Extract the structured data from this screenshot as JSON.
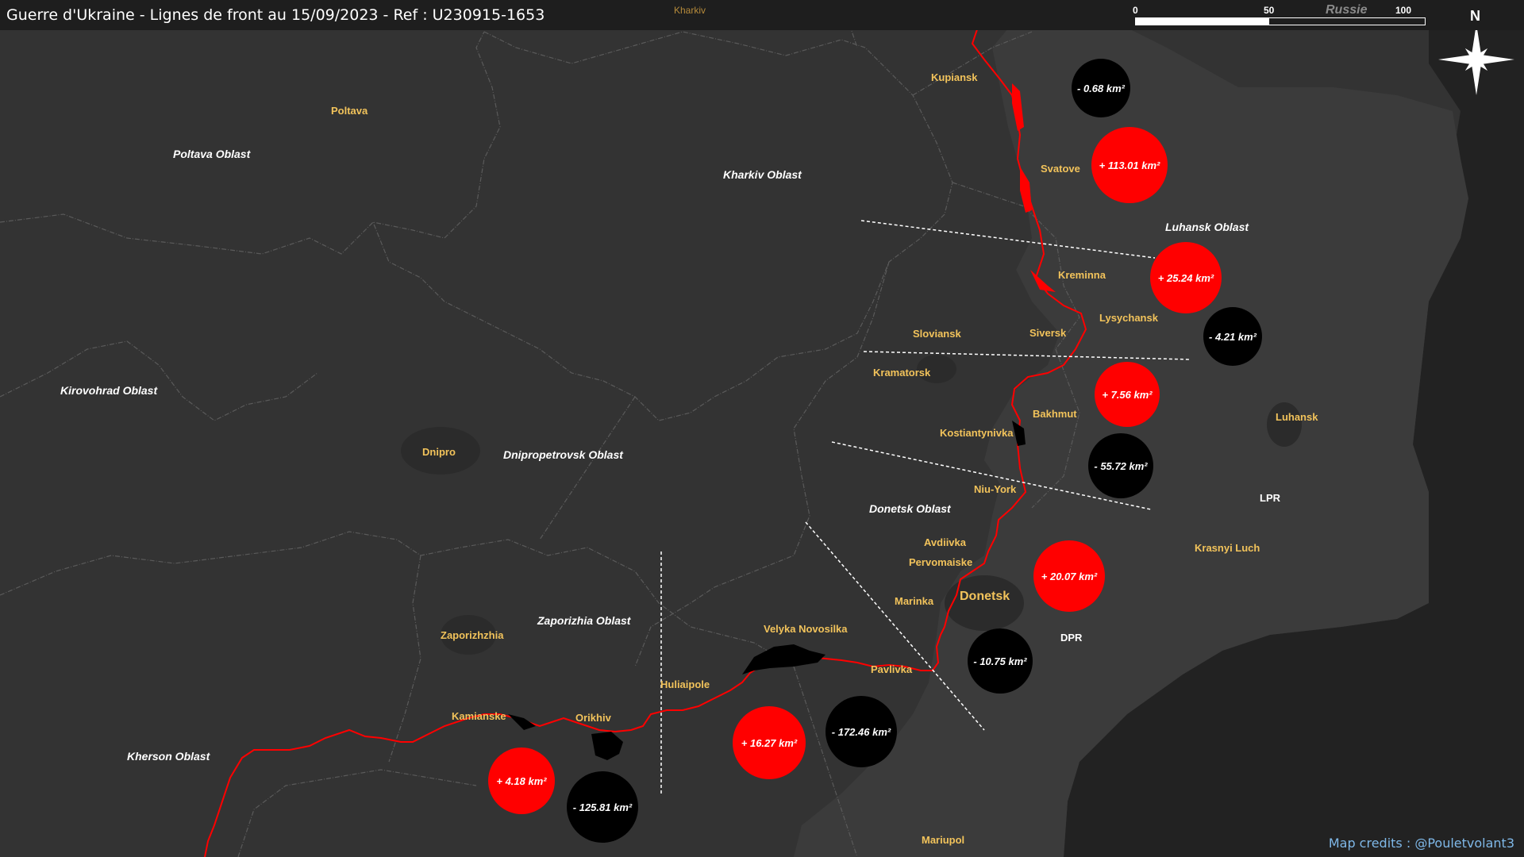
{
  "title": "Guerre d'Ukraine - Lignes de front au 15/09/2023 - Ref : U230915-1653",
  "credits": "Map credits : @Pouletvolant3",
  "scale": {
    "t0": "0",
    "t1": "50",
    "t2": "100 km"
  },
  "russia_label": "Russie",
  "north_label": "N",
  "colors": {
    "front": "#ff0000",
    "gain": "#ff0000",
    "loss": "#000000",
    "ukraine": "#333333",
    "occupied": "#3b3b3b",
    "russia": "#222222"
  },
  "oblasts": [
    {
      "id": "poltava",
      "label": "Poltava Oblast"
    },
    {
      "id": "kharkiv",
      "label": "Kharkiv Oblast"
    },
    {
      "id": "luhansk",
      "label": "Luhansk Oblast"
    },
    {
      "id": "kirovohrad",
      "label": "Kirovohrad Oblast"
    },
    {
      "id": "dnipropetrovsk",
      "label": "Dnipropetrovsk Oblast"
    },
    {
      "id": "donetsk",
      "label": "Donetsk Oblast"
    },
    {
      "id": "zaporizhia",
      "label": "Zaporizhia Oblast"
    },
    {
      "id": "kherson",
      "label": "Kherson Oblast"
    }
  ],
  "regions": [
    {
      "id": "lpr",
      "label": "LPR"
    },
    {
      "id": "dpr",
      "label": "DPR"
    }
  ],
  "cities": [
    {
      "id": "kharkiv",
      "label": "Kharkiv"
    },
    {
      "id": "poltava",
      "label": "Poltava"
    },
    {
      "id": "kupiansk",
      "label": "Kupiansk"
    },
    {
      "id": "svatove",
      "label": "Svatove"
    },
    {
      "id": "kreminna",
      "label": "Kreminna"
    },
    {
      "id": "lysychansk",
      "label": "Lysychansk"
    },
    {
      "id": "siversk",
      "label": "Siversk"
    },
    {
      "id": "sloviansk",
      "label": "Sloviansk"
    },
    {
      "id": "kramatorsk",
      "label": "Kramatorsk"
    },
    {
      "id": "bakhmut",
      "label": "Bakhmut"
    },
    {
      "id": "kostiantynivka",
      "label": "Kostiantynivka"
    },
    {
      "id": "luhansk",
      "label": "Luhansk"
    },
    {
      "id": "dnipro",
      "label": "Dnipro"
    },
    {
      "id": "niu-york",
      "label": "Niu-York"
    },
    {
      "id": "avdiivka",
      "label": "Avdiivka"
    },
    {
      "id": "pervomaiske",
      "label": "Pervomaiske"
    },
    {
      "id": "krasnyi-luch",
      "label": "Krasnyi Luch"
    },
    {
      "id": "marinka",
      "label": "Marinka"
    },
    {
      "id": "donetsk",
      "label": "Donetsk"
    },
    {
      "id": "zaporizhzhia",
      "label": "Zaporizhzhia"
    },
    {
      "id": "velyka-novosilka",
      "label": "Velyka Novosilka"
    },
    {
      "id": "pavlivka",
      "label": "Pavlivka"
    },
    {
      "id": "huliaipole",
      "label": "Huliaipole"
    },
    {
      "id": "kamianske",
      "label": "Kamianske"
    },
    {
      "id": "orikhiv",
      "label": "Orikhiv"
    },
    {
      "id": "mariupol",
      "label": "Mariupol"
    }
  ],
  "area_changes": [
    {
      "id": "kupiansk-loss",
      "label": "- 0.68 km²",
      "type": "loss"
    },
    {
      "id": "svatove-gain",
      "label": "+ 113.01 km²",
      "type": "gain"
    },
    {
      "id": "kreminna-gain",
      "label": "+ 25.24 km²",
      "type": "gain"
    },
    {
      "id": "lysychansk-loss",
      "label": "- 4.21 km²",
      "type": "loss"
    },
    {
      "id": "bakhmut-gain",
      "label": "+ 7.56 km²",
      "type": "gain"
    },
    {
      "id": "bakhmut-loss",
      "label": "- 55.72 km²",
      "type": "loss"
    },
    {
      "id": "donetsk-gain",
      "label": "+ 20.07 km²",
      "type": "gain"
    },
    {
      "id": "donetsk-loss",
      "label": "- 10.75 km²",
      "type": "loss"
    },
    {
      "id": "novosilka-gain",
      "label": "+ 16.27 km²",
      "type": "gain"
    },
    {
      "id": "novosilka-loss",
      "label": "- 172.46 km²",
      "type": "loss"
    },
    {
      "id": "orikhiv-gain",
      "label": "+ 4.18 km²",
      "type": "gain"
    },
    {
      "id": "orikhiv-loss",
      "label": "- 125.81 km²",
      "type": "loss"
    }
  ]
}
